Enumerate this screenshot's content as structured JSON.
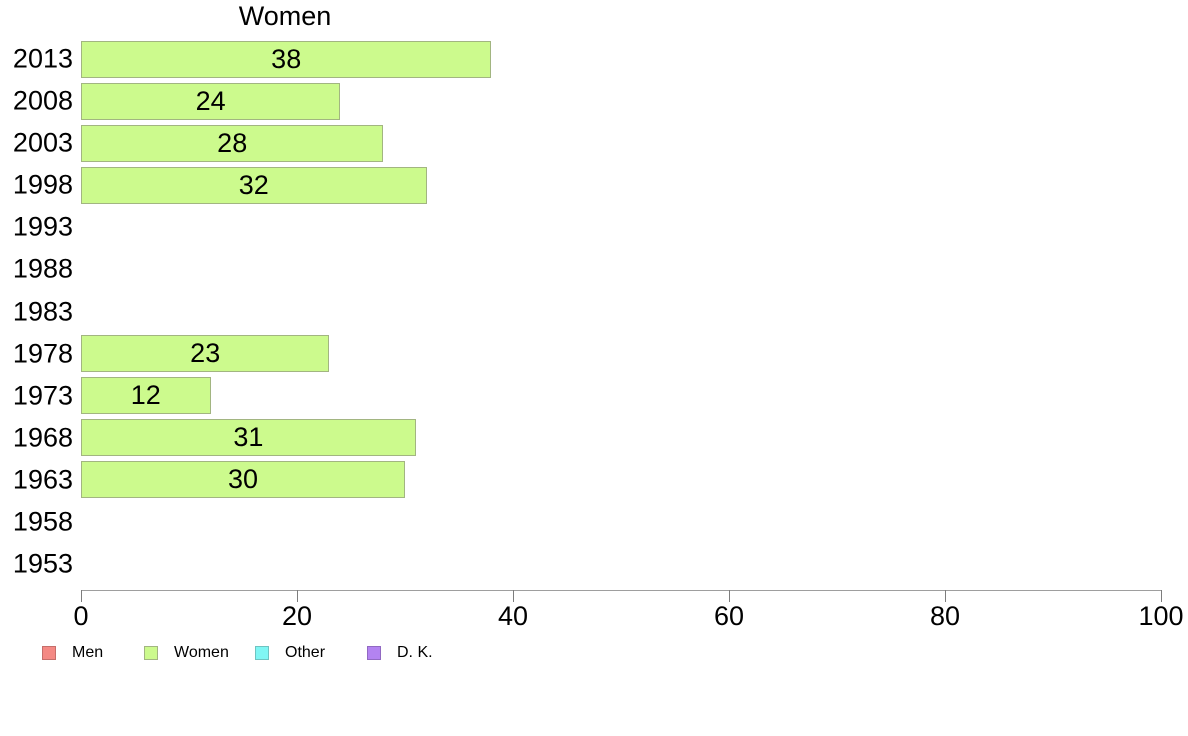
{
  "chart_data": {
    "type": "bar",
    "orientation": "horizontal",
    "title": "Women",
    "categories": [
      "2013",
      "2008",
      "2003",
      "1998",
      "1993",
      "1988",
      "1983",
      "1978",
      "1973",
      "1968",
      "1963",
      "1958",
      "1953"
    ],
    "series": [
      {
        "name": "Women",
        "values": [
          38,
          24,
          28,
          32,
          null,
          null,
          null,
          23,
          12,
          31,
          30,
          null,
          null
        ],
        "fill_color": "#ccfa8d",
        "border_color": "#a2b581"
      }
    ],
    "value_labels_shown": true,
    "xlabel": "",
    "ylabel": "",
    "xlim": [
      0,
      100
    ],
    "x_ticks": [
      "0",
      "20",
      "40",
      "60",
      "80",
      "100"
    ],
    "x_tick_values": [
      0,
      20,
      40,
      60,
      80,
      100
    ],
    "grid": false,
    "legend": {
      "position": "bottom-left",
      "entries": [
        {
          "label": "Men",
          "fill": "#f48984",
          "border": "#c56e6a"
        },
        {
          "label": "Women",
          "fill": "#ccfa8d",
          "border": "#a2b581"
        },
        {
          "label": "Other",
          "fill": "#80f6f4",
          "border": "#6fc3c1"
        },
        {
          "label": "D. K.",
          "fill": "#b383f1",
          "border": "#9169c2"
        }
      ]
    },
    "colors": {
      "axis_line": "#9e9e9e",
      "tick_mark": "#7d7d7d",
      "text": "#000000",
      "background": "#ffffff"
    }
  }
}
